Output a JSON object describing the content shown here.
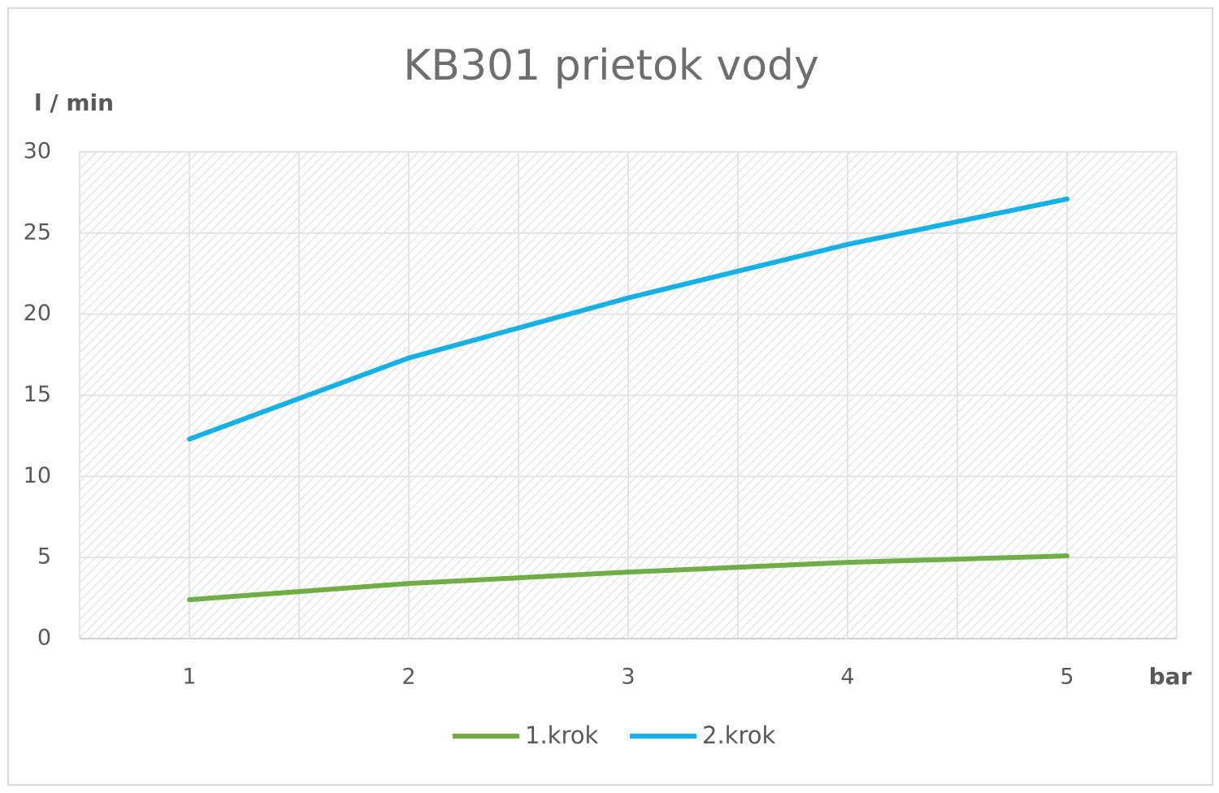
{
  "chart_data": {
    "type": "line",
    "title": "KB301 prietok vody",
    "y_label": "l / min",
    "x_label": "bar",
    "categories": [
      "1",
      "2",
      "3",
      "4",
      "5"
    ],
    "series": [
      {
        "name": "1.krok",
        "color": "#70ad47",
        "values": [
          2.4,
          3.4,
          4.1,
          4.7,
          5.1
        ]
      },
      {
        "name": "2.krok",
        "color": "#16b0e8",
        "values": [
          12.3,
          17.3,
          21.0,
          24.3,
          27.1
        ]
      }
    ],
    "ylim": [
      0,
      30
    ],
    "yticks": [
      0,
      5,
      10,
      15,
      20,
      25,
      30
    ],
    "grid": true,
    "legend": "bottom"
  }
}
